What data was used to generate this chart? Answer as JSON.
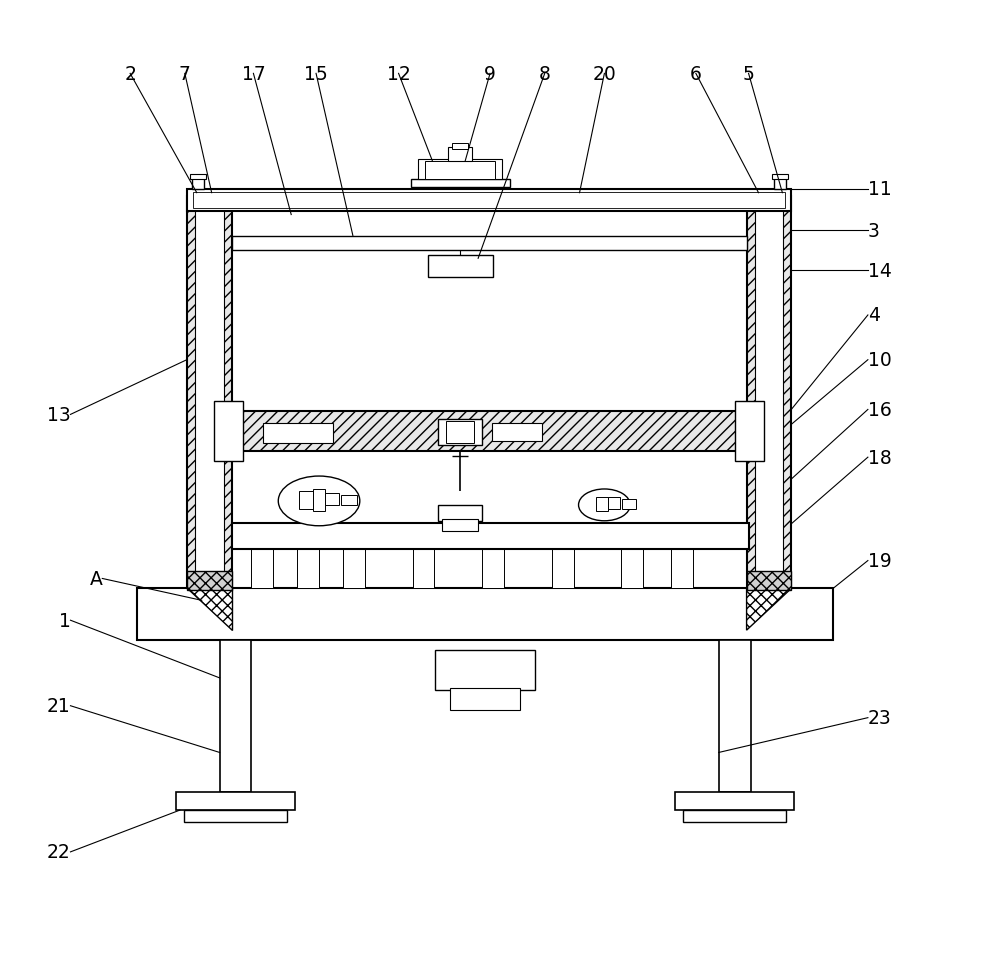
{
  "background_color": "#ffffff",
  "line_color": "#000000",
  "label_color": "#000000",
  "figsize": [
    10.0,
    9.7
  ],
  "dpi": 100
}
